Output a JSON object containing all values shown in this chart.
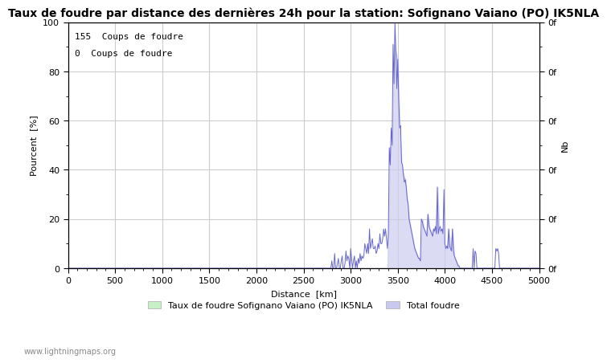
{
  "title": "Taux de foudre par distance des dernières 24h pour la station: Sofignano Vaiano (PO) IK5NLA",
  "xlabel": "Distance  [km]",
  "ylabel_left": "Pourcent  [%]",
  "ylabel_right": "Nb",
  "xlim": [
    0,
    5000
  ],
  "ylim": [
    0,
    100
  ],
  "xticks": [
    0,
    500,
    1000,
    1500,
    2000,
    2500,
    3000,
    3500,
    4000,
    4500,
    5000
  ],
  "yticks_major": [
    0,
    20,
    40,
    60,
    80,
    100
  ],
  "yticks_minor": [
    10,
    30,
    50,
    70,
    90
  ],
  "annotation1": "155  Coups de foudre",
  "annotation2": "0  Coups de foudre",
  "legend_label1": "Taux de foudre Sofignano Vaiano (PO) IK5NLA",
  "legend_label2": "Total foudre",
  "legend_color1": "#c8f0c8",
  "legend_color2": "#c8c8f0",
  "right_ytick_labels": [
    "0f",
    "0f",
    "0f",
    "0f",
    "0f",
    "0f",
    "0f",
    "0f",
    "0f",
    "0f",
    "0f"
  ],
  "watermark": "www.lightningmaps.org",
  "bg_color": "#ffffff",
  "grid_color": "#cccccc",
  "line_color": "#6666cc",
  "fill_color": "#ccccee",
  "title_fontsize": 10,
  "axis_fontsize": 8,
  "tick_fontsize": 8,
  "annotation_fontsize": 8,
  "spike_x": [
    2800,
    2830,
    2860,
    2870,
    2900,
    2910,
    2940,
    2950,
    2960,
    2970,
    2980,
    3000,
    3010,
    3030,
    3040,
    3060,
    3080,
    3090,
    3100,
    3110,
    3120,
    3130,
    3140,
    3150,
    3160,
    3170,
    3180,
    3190,
    3200,
    3210,
    3220,
    3230,
    3240,
    3250,
    3260,
    3270,
    3280,
    3290,
    3300,
    3310,
    3320,
    3330,
    3340,
    3350,
    3360,
    3370,
    3380,
    3390,
    3400,
    3410,
    3420,
    3430,
    3440,
    3450,
    3460,
    3470,
    3480,
    3490,
    3500,
    3510,
    3520,
    3530,
    3540,
    3550,
    3560,
    3570,
    3580,
    3590,
    3600,
    3610,
    3620,
    3630,
    3640,
    3650,
    3660,
    3670,
    3680,
    3690,
    3700,
    3710,
    3720,
    3730,
    3740,
    3750,
    3760,
    3770,
    3780,
    3790,
    3800,
    3810,
    3820,
    3830,
    3840,
    3850,
    3860,
    3870,
    3880,
    3890,
    3900,
    3910,
    3920,
    3930,
    3940,
    3950,
    3960,
    3970,
    3980,
    3990,
    4000,
    4010,
    4020,
    4030,
    4040,
    4050,
    4060,
    4070,
    4080,
    4090,
    4100,
    4110,
    4120,
    4130,
    4140,
    4150,
    4300,
    4320,
    4330,
    4540,
    4550,
    4560,
    4570
  ],
  "spike_y": [
    3,
    6,
    2,
    4,
    3,
    5,
    2,
    7,
    3,
    5,
    4,
    8,
    4,
    3,
    5,
    3,
    4,
    2,
    6,
    3,
    5,
    4,
    5,
    10,
    8,
    6,
    10,
    6,
    16,
    8,
    10,
    12,
    8,
    8,
    9,
    6,
    7,
    10,
    8,
    14,
    10,
    10,
    12,
    16,
    13,
    16,
    12,
    8,
    14,
    49,
    42,
    57,
    50,
    91,
    75,
    100,
    88,
    73,
    85,
    68,
    57,
    58,
    43,
    42,
    38,
    35,
    36,
    33,
    28,
    26,
    20,
    18,
    16,
    14,
    12,
    10,
    8,
    7,
    6,
    5,
    4,
    4,
    3,
    20,
    19,
    17,
    16,
    15,
    14,
    13,
    22,
    17,
    16,
    15,
    14,
    13,
    16,
    15,
    17,
    14,
    33,
    14,
    16,
    17,
    15,
    16,
    14,
    32,
    10,
    8,
    9,
    8,
    16,
    9,
    8,
    7,
    16,
    7,
    5,
    4,
    3,
    2,
    1,
    1,
    8,
    7,
    6,
    8,
    7,
    8,
    6
  ],
  "fill_x": [
    3400,
    3420,
    3440,
    3460,
    3480,
    3500,
    3520,
    3540,
    3560,
    3580,
    3600,
    3620,
    3640,
    3660,
    3680,
    3700,
    3720,
    3740,
    3760,
    3780,
    3800,
    3820,
    3840,
    3860,
    3880,
    3900,
    3920,
    3940,
    3960,
    3980,
    4000,
    4020,
    4040,
    4060,
    4080,
    4100,
    4120,
    4140
  ],
  "fill_y": [
    14,
    49,
    50,
    91,
    88,
    85,
    57,
    43,
    38,
    36,
    28,
    20,
    16,
    12,
    8,
    6,
    4,
    3,
    20,
    16,
    14,
    22,
    16,
    14,
    16,
    17,
    33,
    16,
    15,
    14,
    8,
    9,
    16,
    8,
    16,
    5,
    3,
    1
  ]
}
